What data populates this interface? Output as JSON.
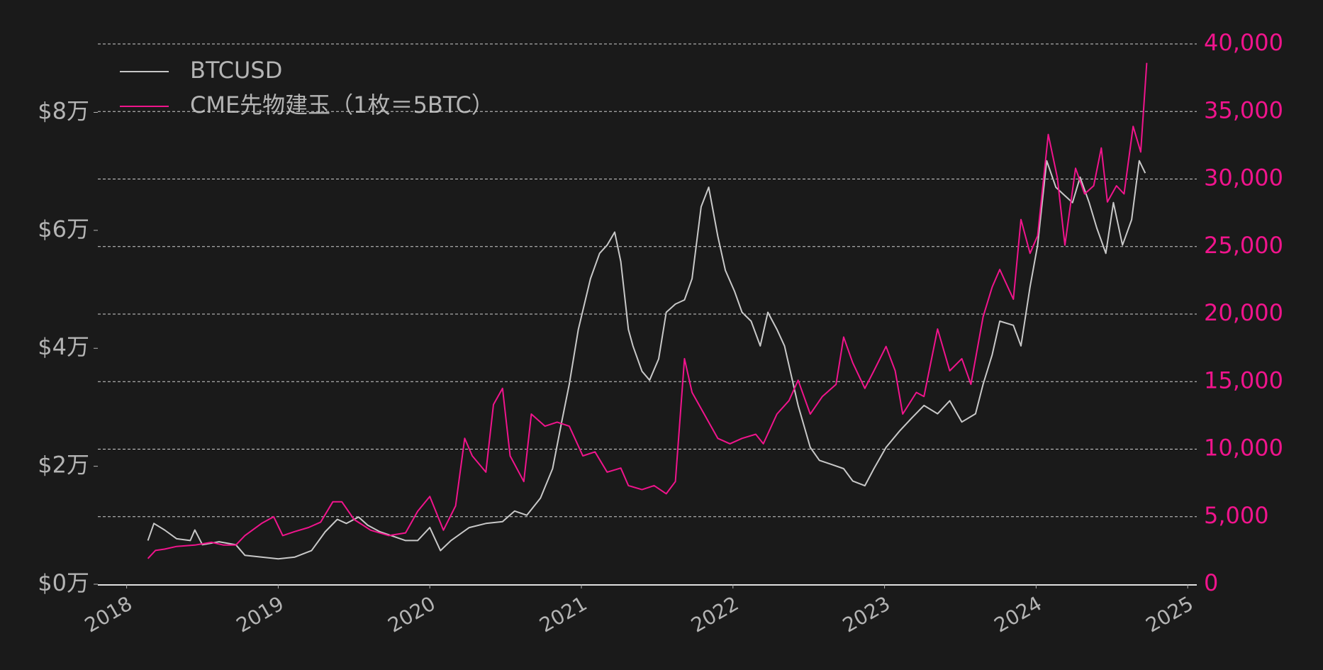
{
  "chart_data": {
    "type": "line",
    "xlim": [
      2017.81,
      2025.06
    ],
    "xticks": [
      2018,
      2019,
      2020,
      2021,
      2022,
      2023,
      2024,
      2025
    ],
    "ylim": [
      0,
      91600
    ],
    "yticks": [
      {
        "value": 0,
        "label": "$0万"
      },
      {
        "value": 20000,
        "label": "$2万"
      },
      {
        "value": 40000,
        "label": "$4万"
      },
      {
        "value": 60000,
        "label": "$6万"
      },
      {
        "value": 80000,
        "label": "$8万"
      }
    ],
    "y2lim": [
      0,
      40000
    ],
    "y2ticks": [
      0,
      {
        "value": 5000,
        "label": "5,000"
      },
      {
        "value": 10000,
        "label": "10,000"
      },
      {
        "value": 15000,
        "label": "15,000"
      },
      {
        "value": 20000,
        "label": "20,000"
      },
      {
        "value": 25000,
        "label": "25,000"
      },
      {
        "value": 30000,
        "label": "30,000"
      },
      {
        "value": 35000,
        "label": "35,000"
      },
      {
        "value": 40000,
        "label": "40,000"
      }
    ],
    "grid": true,
    "legend": "upper left",
    "series": [
      {
        "name": "BTCUSD",
        "color": "#c8c8c8",
        "axis": "y",
        "x": [
          2018.14,
          2018.18,
          2018.25,
          2018.33,
          2018.42,
          2018.45,
          2018.5,
          2018.61,
          2018.72,
          2018.78,
          2018.89,
          2019.0,
          2019.11,
          2019.22,
          2019.31,
          2019.39,
          2019.45,
          2019.53,
          2019.59,
          2019.67,
          2019.75,
          2019.84,
          2019.92,
          2020.0,
          2020.07,
          2020.14,
          2020.26,
          2020.37,
          2020.48,
          2020.56,
          2020.64,
          2020.73,
          2020.81,
          2020.87,
          2020.92,
          2020.98,
          2021.06,
          2021.12,
          2021.17,
          2021.22,
          2021.26,
          2021.31,
          2021.34,
          2021.4,
          2021.45,
          2021.51,
          2021.56,
          2021.62,
          2021.68,
          2021.73,
          2021.79,
          2021.84,
          2021.9,
          2021.95,
          2022.01,
          2022.06,
          2022.12,
          2022.18,
          2022.23,
          2022.29,
          2022.34,
          2022.43,
          2022.51,
          2022.57,
          2022.65,
          2022.73,
          2022.79,
          2022.87,
          2022.93,
          2023.01,
          2023.1,
          2023.18,
          2023.26,
          2023.35,
          2023.43,
          2023.51,
          2023.6,
          2023.65,
          2023.71,
          2023.76,
          2023.85,
          2023.9,
          2023.96,
          2024.01,
          2024.07,
          2024.13,
          2024.18,
          2024.24,
          2024.29,
          2024.35,
          2024.4,
          2024.46,
          2024.51,
          2024.57,
          2024.63,
          2024.68,
          2024.72
        ],
        "values": [
          7400,
          10300,
          9200,
          7700,
          7400,
          9200,
          6700,
          7200,
          6700,
          4900,
          4600,
          4300,
          4600,
          5700,
          8900,
          11000,
          10300,
          11400,
          10000,
          8900,
          8200,
          7400,
          7400,
          9600,
          5700,
          7400,
          9600,
          10300,
          10600,
          12400,
          11700,
          14600,
          19600,
          27500,
          33900,
          43200,
          51800,
          56100,
          57500,
          59700,
          54700,
          43200,
          40400,
          36100,
          34600,
          38200,
          46100,
          47500,
          48200,
          51800,
          64000,
          67300,
          59000,
          53200,
          49700,
          46100,
          44600,
          40400,
          46100,
          43200,
          40400,
          30300,
          23200,
          21000,
          20300,
          19600,
          17500,
          16700,
          19600,
          23200,
          26000,
          28200,
          30300,
          28900,
          31100,
          27500,
          28900,
          33900,
          38900,
          44600,
          43900,
          40400,
          50400,
          57500,
          71800,
          67300,
          66100,
          64700,
          69000,
          64700,
          60400,
          56100,
          64700,
          57500,
          61800,
          71800,
          69700
        ]
      },
      {
        "name": "CME先物建玉（1枚＝5BTC）",
        "color": "#f0148c",
        "axis": "y2",
        "x": [
          2018.14,
          2018.19,
          2018.25,
          2018.33,
          2018.45,
          2018.56,
          2018.64,
          2018.72,
          2018.78,
          2018.89,
          2018.97,
          2019.03,
          2019.11,
          2019.2,
          2019.28,
          2019.36,
          2019.42,
          2019.5,
          2019.61,
          2019.73,
          2019.84,
          2019.92,
          2020.0,
          2020.09,
          2020.17,
          2020.23,
          2020.28,
          2020.37,
          2020.42,
          2020.48,
          2020.53,
          2020.62,
          2020.67,
          2020.76,
          2020.84,
          2020.92,
          2021.01,
          2021.09,
          2021.17,
          2021.26,
          2021.31,
          2021.4,
          2021.48,
          2021.56,
          2021.62,
          2021.68,
          2021.73,
          2021.81,
          2021.9,
          2021.98,
          2022.06,
          2022.15,
          2022.2,
          2022.29,
          2022.37,
          2022.43,
          2022.51,
          2022.59,
          2022.68,
          2022.73,
          2022.79,
          2022.87,
          2022.93,
          2023.01,
          2023.07,
          2023.12,
          2023.21,
          2023.26,
          2023.35,
          2023.43,
          2023.51,
          2023.57,
          2023.65,
          2023.71,
          2023.76,
          2023.85,
          2023.9,
          2023.96,
          2024.01,
          2024.08,
          2024.14,
          2024.19,
          2024.26,
          2024.32,
          2024.38,
          2024.43,
          2024.47,
          2024.53,
          2024.58,
          2024.64,
          2024.69,
          2024.73
        ],
        "values": [
          1900,
          2500,
          2600,
          2800,
          2900,
          3100,
          2900,
          2900,
          3600,
          4500,
          5000,
          3600,
          3900,
          4200,
          4600,
          6100,
          6100,
          4800,
          4000,
          3600,
          3800,
          5400,
          6500,
          4000,
          5800,
          10800,
          9500,
          8300,
          13300,
          14500,
          9500,
          7600,
          12600,
          11700,
          12000,
          11700,
          9500,
          9800,
          8300,
          8600,
          7300,
          7000,
          7300,
          6700,
          7600,
          16700,
          14200,
          12600,
          10800,
          10400,
          10800,
          11100,
          10400,
          12600,
          13600,
          15100,
          12600,
          13900,
          14800,
          18300,
          16400,
          14500,
          15800,
          17600,
          15800,
          12600,
          14200,
          13900,
          18900,
          15800,
          16700,
          14800,
          19800,
          22000,
          23300,
          21100,
          27000,
          24500,
          25800,
          33300,
          30100,
          25100,
          30800,
          28900,
          29500,
          32300,
          28300,
          29500,
          28900,
          33900,
          32000,
          38600
        ]
      }
    ]
  }
}
